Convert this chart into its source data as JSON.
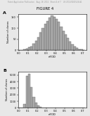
{
  "title": "FIGURE 4",
  "header_text": "Patent Application Publication    Aug. 18, 2011   Sheet 4 of 7    US 2011/0201524 A1",
  "panel_A_label": "A",
  "panel_B_label": "B",
  "xlabel": "nFOD",
  "ylabel": "Number of clones",
  "panel_A_xticks": [
    0.0,
    0.1,
    0.2,
    0.3,
    0.4,
    0.5,
    0.6,
    0.7
  ],
  "panel_B_xticks": [
    0.0,
    0.1,
    0.2,
    0.3,
    0.4,
    0.5,
    0.6,
    0.7
  ],
  "panel_A_yticks": [
    0,
    50,
    100,
    150
  ],
  "panel_B_yticks": [
    0,
    1000,
    2000,
    3000,
    4000,
    5000
  ],
  "panel_A_ylim": [
    0,
    165
  ],
  "panel_B_ylim": [
    0,
    5500
  ],
  "bar_color": "#aaaaaa",
  "bar_edge_color": "#555555",
  "bg_color": "#ffffff",
  "fig_bg_color": "#e8e8e8",
  "panel_A_bins": [
    0.0,
    0.025,
    0.05,
    0.075,
    0.1,
    0.125,
    0.15,
    0.175,
    0.2,
    0.225,
    0.25,
    0.275,
    0.3,
    0.325,
    0.35,
    0.375,
    0.4,
    0.425,
    0.45,
    0.475,
    0.5,
    0.525,
    0.55,
    0.575,
    0.6,
    0.625,
    0.65,
    0.675,
    0.7
  ],
  "panel_A_heights": [
    1,
    2,
    4,
    8,
    12,
    18,
    28,
    42,
    60,
    80,
    100,
    118,
    132,
    148,
    158,
    152,
    143,
    128,
    108,
    88,
    70,
    54,
    40,
    26,
    16,
    9,
    5,
    3,
    1
  ],
  "panel_B_bins": [
    0.0,
    0.025,
    0.05,
    0.075,
    0.1,
    0.125,
    0.15,
    0.175,
    0.2,
    0.225,
    0.25,
    0.275,
    0.3,
    0.325,
    0.35,
    0.375,
    0.4,
    0.425,
    0.45,
    0.475,
    0.5,
    0.525,
    0.55,
    0.575,
    0.6,
    0.625,
    0.65,
    0.675,
    0.7
  ],
  "panel_B_heights": [
    5,
    50,
    600,
    4900,
    5200,
    3100,
    1700,
    800,
    380,
    180,
    100,
    55,
    32,
    20,
    13,
    9,
    6,
    4,
    3,
    2,
    2,
    1,
    1,
    0,
    0,
    0,
    0,
    0,
    0
  ]
}
